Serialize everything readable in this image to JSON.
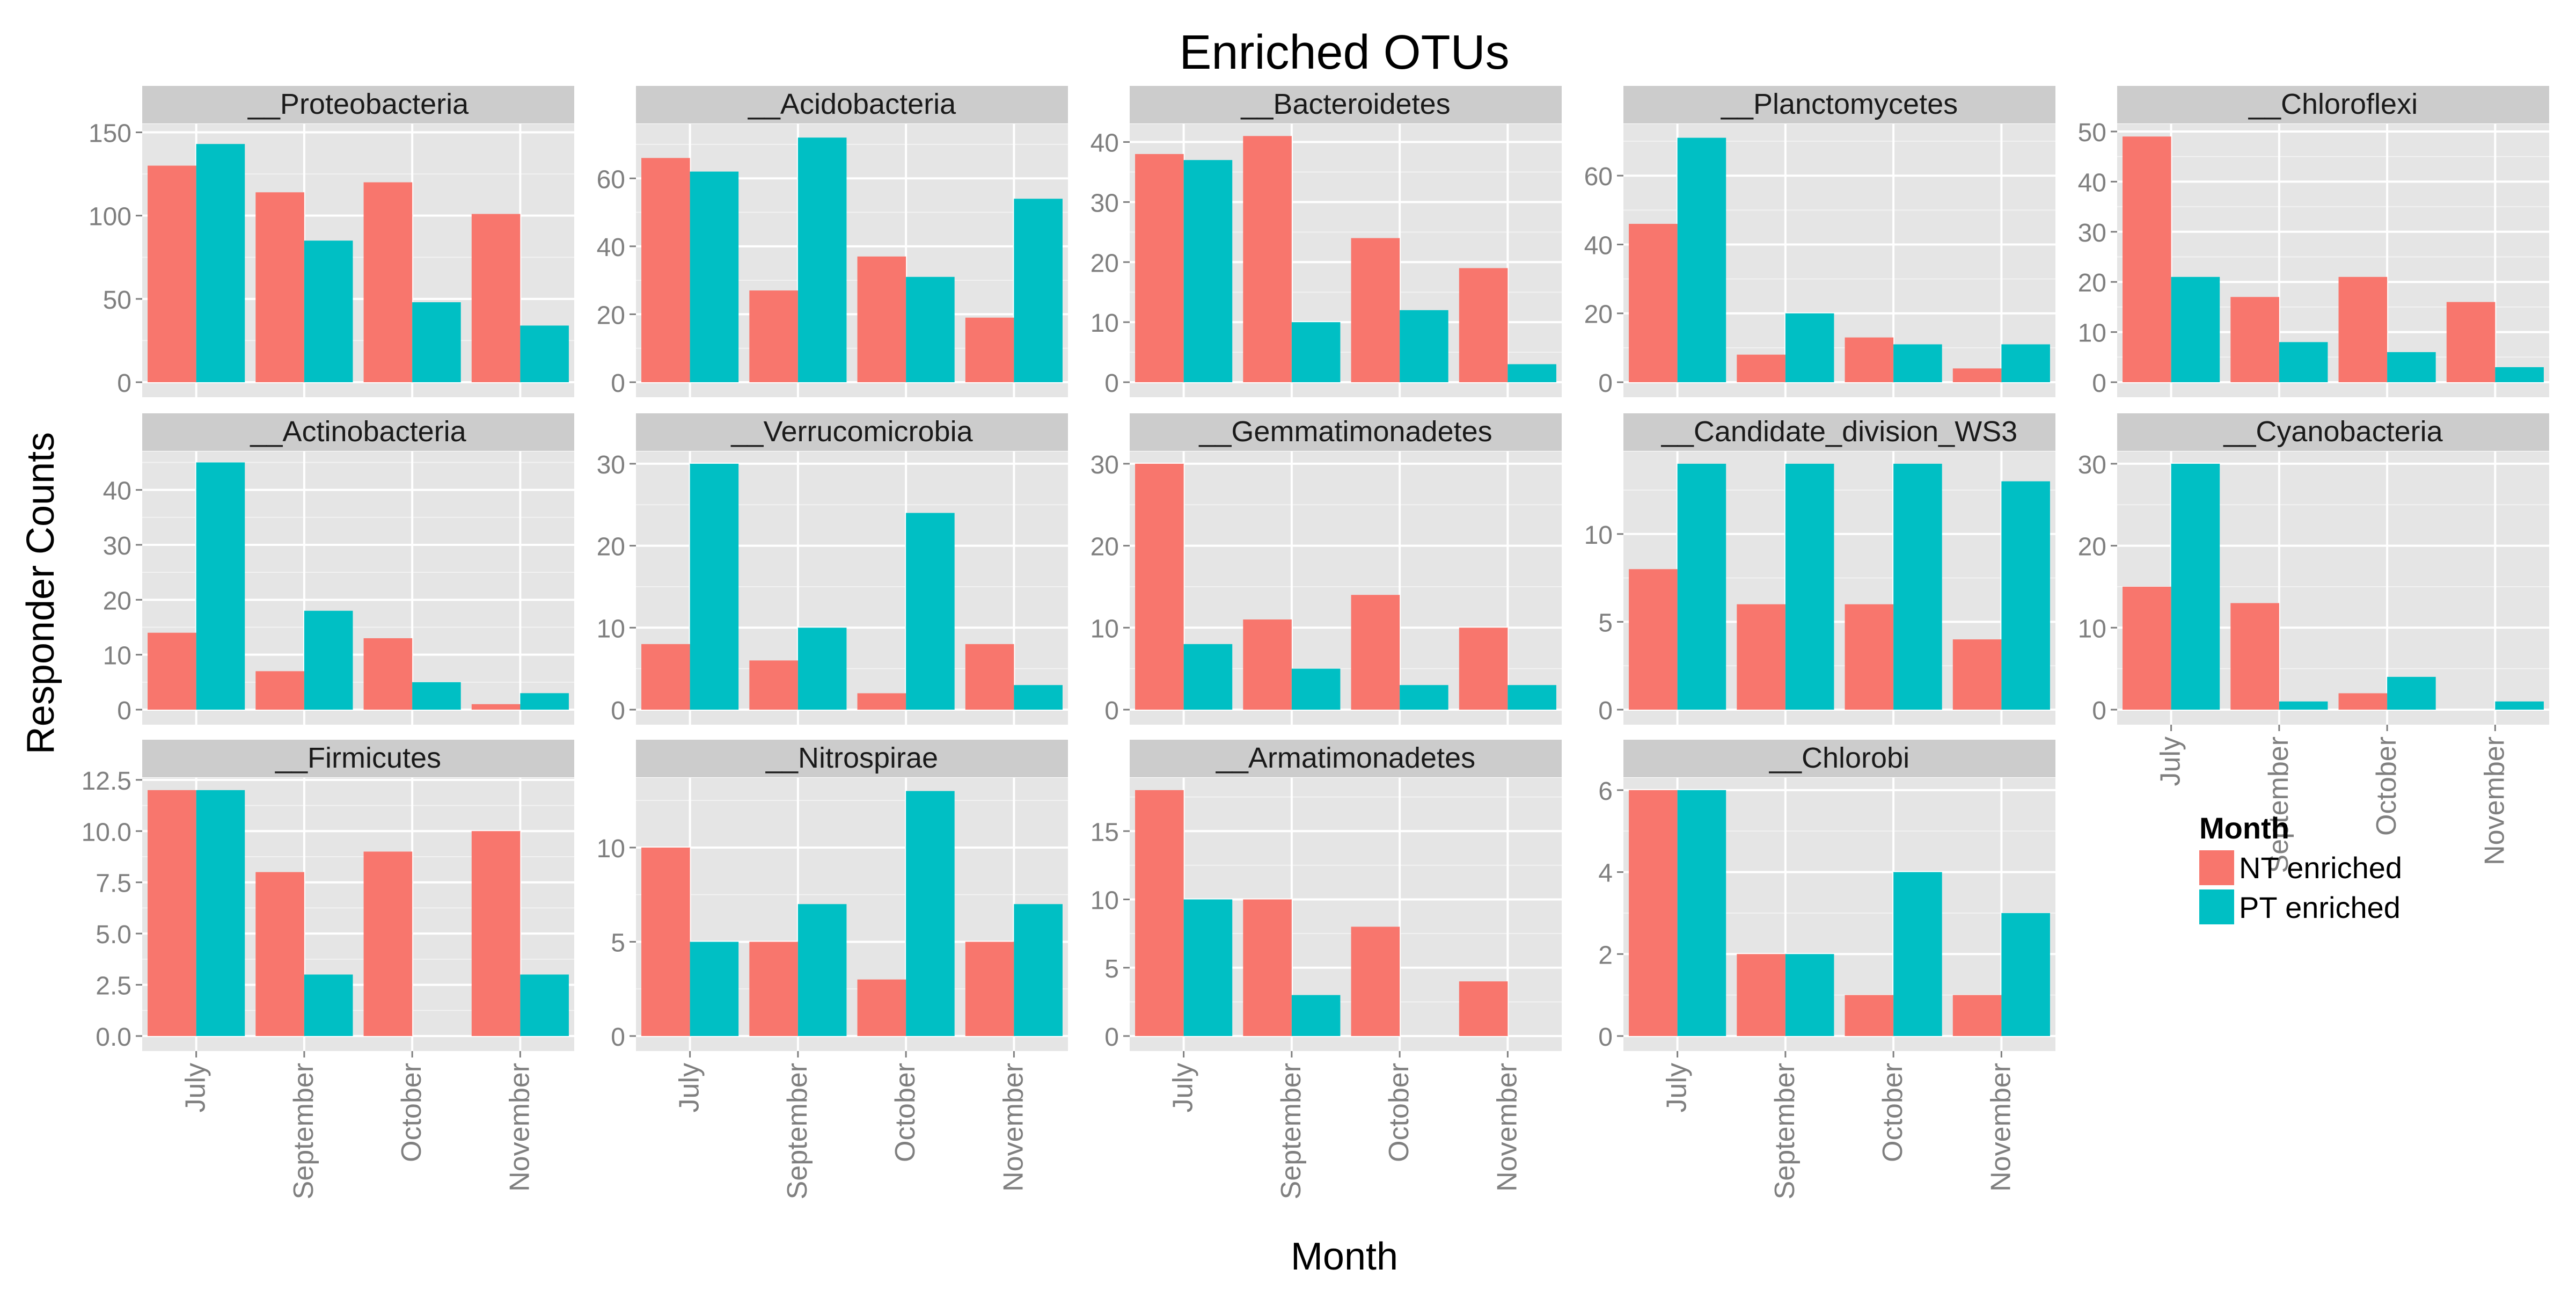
{
  "chart_data": {
    "type": "bar",
    "title": "Enriched OTUs",
    "xlabel": "Month",
    "ylabel": "Responder Counts",
    "categories": [
      "July",
      "September",
      "October",
      "November"
    ],
    "legend": {
      "title": "Month",
      "position": "right",
      "entries": [
        {
          "name": "NT enriched",
          "color": "#F8766D"
        },
        {
          "name": "PT enriched",
          "color": "#00BFC4"
        }
      ]
    },
    "panel_background": "#E5E5E5",
    "strip_background": "#CCCCCC",
    "grid": true,
    "facets": [
      {
        "label": "__Proteobacteria",
        "ylim": [
          0,
          155
        ],
        "ticks": [
          "0",
          "50",
          "100",
          "150"
        ],
        "NT": [
          130,
          114,
          120,
          101
        ],
        "PT": [
          143,
          85,
          48,
          34
        ]
      },
      {
        "label": "__Acidobacteria",
        "ylim": [
          0,
          76
        ],
        "ticks": [
          "0",
          "20",
          "40",
          "60"
        ],
        "NT": [
          66,
          27,
          37,
          19
        ],
        "PT": [
          62,
          72,
          31,
          54
        ]
      },
      {
        "label": "__Bacteroidetes",
        "ylim": [
          0,
          43
        ],
        "ticks": [
          "0",
          "10",
          "20",
          "30",
          "40"
        ],
        "NT": [
          38,
          41,
          24,
          19
        ],
        "PT": [
          37,
          10,
          12,
          3
        ]
      },
      {
        "label": "__Planctomycetes",
        "ylim": [
          0,
          75
        ],
        "ticks": [
          "0",
          "20",
          "40",
          "60"
        ],
        "NT": [
          46,
          8,
          13,
          4
        ],
        "PT": [
          71,
          20,
          11,
          11
        ]
      },
      {
        "label": "__Chloroflexi",
        "ylim": [
          0,
          51.5
        ],
        "ticks": [
          "0",
          "10",
          "20",
          "30",
          "40",
          "50"
        ],
        "NT": [
          49,
          17,
          21,
          16
        ],
        "PT": [
          21,
          8,
          6,
          3
        ]
      },
      {
        "label": "__Actinobacteria",
        "ylim": [
          0,
          47
        ],
        "ticks": [
          "0",
          "10",
          "20",
          "30",
          "40"
        ],
        "NT": [
          14,
          7,
          13,
          1
        ],
        "PT": [
          45,
          18,
          5,
          3
        ]
      },
      {
        "label": "__Verrucomicrobia",
        "ylim": [
          0,
          31.5
        ],
        "ticks": [
          "0",
          "10",
          "20",
          "30"
        ],
        "NT": [
          8,
          6,
          2,
          8
        ],
        "PT": [
          30,
          10,
          24,
          3
        ]
      },
      {
        "label": "__Gemmatimonadetes",
        "ylim": [
          0,
          31.5
        ],
        "ticks": [
          "0",
          "10",
          "20",
          "30"
        ],
        "NT": [
          30,
          11,
          14,
          10
        ],
        "PT": [
          8,
          5,
          3,
          3
        ]
      },
      {
        "label": "__Candidate_division_WS3",
        "ylim": [
          0,
          14.7
        ],
        "ticks": [
          "0",
          "5",
          "10"
        ],
        "NT": [
          8,
          6,
          6,
          4
        ],
        "PT": [
          14,
          14,
          14,
          13
        ]
      },
      {
        "label": "__Cyanobacteria",
        "ylim": [
          0,
          31.5
        ],
        "ticks": [
          "0",
          "10",
          "20",
          "30"
        ],
        "NT": [
          15,
          13,
          2,
          0
        ],
        "PT": [
          30,
          1,
          4,
          1
        ]
      },
      {
        "label": "__Firmicutes",
        "ylim": [
          0,
          12.6
        ],
        "ticks": [
          "0.0",
          "2.5",
          "5.0",
          "7.5",
          "10.0",
          "12.5"
        ],
        "NT": [
          12,
          8,
          9,
          10
        ],
        "PT": [
          12,
          3,
          0,
          3
        ]
      },
      {
        "label": "__Nitrospirae",
        "ylim": [
          0,
          13.7
        ],
        "ticks": [
          "0",
          "5",
          "10"
        ],
        "NT": [
          10,
          5,
          3,
          5
        ],
        "PT": [
          5,
          7,
          13,
          7
        ]
      },
      {
        "label": "__Armatimonadetes",
        "ylim": [
          0,
          18.9
        ],
        "ticks": [
          "0",
          "5",
          "10",
          "15"
        ],
        "NT": [
          18,
          10,
          8,
          4
        ],
        "PT": [
          10,
          3,
          0,
          0
        ]
      },
      {
        "label": "__Chlorobi",
        "ylim": [
          0,
          6.3
        ],
        "ticks": [
          "0",
          "2",
          "4",
          "6"
        ],
        "NT": [
          6,
          2,
          1,
          1
        ],
        "PT": [
          6,
          2,
          4,
          3
        ]
      }
    ]
  }
}
